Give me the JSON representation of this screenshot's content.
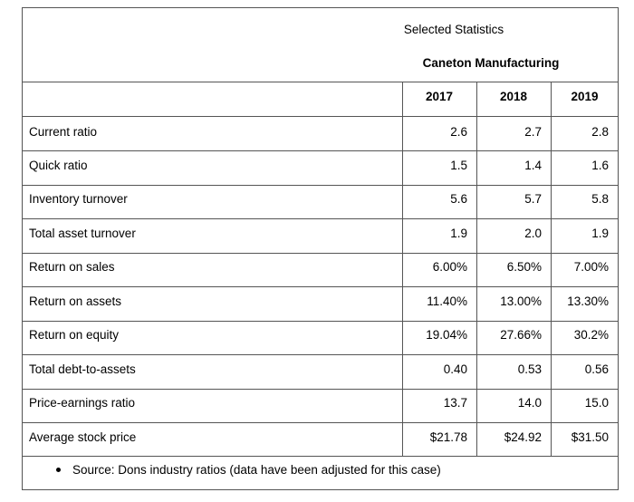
{
  "header": {
    "title": "Selected Statistics",
    "company": "Caneton Manufacturing"
  },
  "columns": [
    "2017",
    "2018",
    "2019"
  ],
  "rows": [
    {
      "label": "Current ratio",
      "values": [
        "2.6",
        "2.7",
        "2.8"
      ]
    },
    {
      "label": "Quick ratio",
      "values": [
        "1.5",
        "1.4",
        "1.6"
      ]
    },
    {
      "label": "Inventory turnover",
      "values": [
        "5.6",
        "5.7",
        "5.8"
      ]
    },
    {
      "label": "Total asset turnover",
      "values": [
        "1.9",
        "2.0",
        "1.9"
      ]
    },
    {
      "label": "Return on sales",
      "values": [
        "6.00%",
        "6.50%",
        "7.00%"
      ]
    },
    {
      "label": "Return on assets",
      "values": [
        "11.40%",
        "13.00%",
        "13.30%"
      ]
    },
    {
      "label": "Return on equity",
      "values": [
        "19.04%",
        "27.66%",
        "30.2%"
      ]
    },
    {
      "label": "Total debt-to-assets",
      "values": [
        "0.40",
        "0.53",
        "0.56"
      ]
    },
    {
      "label": "Price-earnings ratio",
      "values": [
        "13.7",
        "14.0",
        "15.0"
      ]
    },
    {
      "label": "Average stock price",
      "values": [
        "$21.78",
        "$24.92",
        "$31.50"
      ]
    }
  ],
  "footnote": "Source: Dons industry ratios (data have been adjusted for this case)"
}
